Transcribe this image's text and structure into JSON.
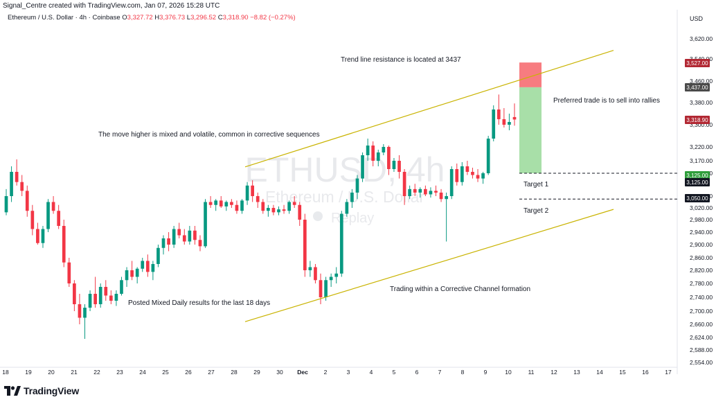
{
  "header": {
    "attribution": "Signal_Centre created with TradingView.com, Jan 07, 2026 15:28 UTC",
    "symbol": "Ethereum / U.S. Dollar · 4h · Coinbase",
    "o_label": "O",
    "o_value": "3,327.72",
    "h_label": "H",
    "h_value": "3,376.73",
    "l_label": "L",
    "l_value": "3,296.52",
    "c_label": "C",
    "c_value": "3,318.90 −8.82 (−0.27%)",
    "currency": "USD"
  },
  "watermark": {
    "ticker": "ETHUSD, 4h",
    "name": "Ethereum / U.S. Dollar",
    "replay": "Replay"
  },
  "branding": {
    "logo_text": "TradingView"
  },
  "colors": {
    "up": "#089981",
    "down": "#f23645",
    "channel": "#c9b300",
    "stop_zone": "#f77c80",
    "target_zone": "#9fdc9f"
  },
  "chart_data": {
    "type": "candlestick",
    "symbol": "ETHUSD",
    "timeframe": "4h",
    "y_axis": {
      "ticks": [
        "3,620.00",
        "3,540.00",
        "3,460.00",
        "3,380.00",
        "3,300.00",
        "3,220.00",
        "3,170.00",
        "3,125.00",
        "3,060.00",
        "3,020.00",
        "2,980.00",
        "2,940.00",
        "2,900.00",
        "2,860.00",
        "2,820.00",
        "2,780.00",
        "2,740.00",
        "2,700.00",
        "2,660.00",
        "2,624.00",
        "2,588.00",
        "2,554.00"
      ]
    },
    "x_axis": {
      "ticks": [
        "18",
        "19",
        "20",
        "21",
        "22",
        "23",
        "24",
        "25",
        "26",
        "27",
        "28",
        "29",
        "30",
        "Dec",
        "2",
        "3",
        "4",
        "5",
        "6",
        "7",
        "8",
        "9",
        "10",
        "11",
        "12",
        "13",
        "14",
        "15",
        "16",
        "17"
      ]
    },
    "price_labels": [
      {
        "text": "3,527.00",
        "role": "stop",
        "color": "#b22833"
      },
      {
        "text": "3,437.00",
        "role": "resistance",
        "color": "#4a4a4a"
      },
      {
        "text": "3,318.90",
        "role": "last",
        "color": "#b22833"
      },
      {
        "text": "3,125.00",
        "role": "target1_top",
        "color": "#2e9e3a"
      },
      {
        "text": "3,125.00",
        "role": "target1",
        "color": "#131722"
      },
      {
        "text": "3,050.00",
        "role": "target2",
        "color": "#131722"
      }
    ],
    "annotations": [
      "Trend line resistance is located at 3437",
      "Preferred trade is to sell into rallies",
      "The move higher is mixed and volatile, common in corrective sequences",
      "Target 1",
      "Target 2",
      "Posted Mixed Daily results for the last 18 days",
      "Trading within a Corrective Channel formation"
    ],
    "last_close": 3318.9,
    "channel": {
      "upper": [
        [
          28.4,
          3148
        ],
        [
          15,
          3574
        ]
      ],
      "lower": [
        [
          28.4,
          2668
        ],
        [
          15,
          3015
        ]
      ]
    },
    "trade": {
      "entry": 3437,
      "stop": 3527,
      "target": 3125
    },
    "levels": [
      3125,
      3050
    ],
    "candles": [
      [
        3005,
        3080,
        2995,
        3060
      ],
      [
        3060,
        3150,
        3040,
        3130
      ],
      [
        3130,
        3175,
        3090,
        3100
      ],
      [
        3100,
        3120,
        3060,
        3075
      ],
      [
        3075,
        3090,
        2990,
        3010
      ],
      [
        3010,
        3030,
        2930,
        2950
      ],
      [
        2950,
        2970,
        2900,
        2905
      ],
      [
        2905,
        2960,
        2890,
        2950
      ],
      [
        2950,
        3050,
        2940,
        3040
      ],
      [
        3040,
        3060,
        3000,
        3010
      ],
      [
        3010,
        3030,
        2950,
        2960
      ],
      [
        2960,
        2980,
        2830,
        2845
      ],
      [
        2845,
        2860,
        2770,
        2780
      ],
      [
        2780,
        2790,
        2700,
        2720
      ],
      [
        2720,
        2750,
        2660,
        2680
      ],
      [
        2680,
        2720,
        2620,
        2710
      ],
      [
        2710,
        2760,
        2700,
        2750
      ],
      [
        2750,
        2800,
        2710,
        2720
      ],
      [
        2720,
        2780,
        2710,
        2770
      ],
      [
        2770,
        2790,
        2730,
        2745
      ],
      [
        2745,
        2760,
        2720,
        2730
      ],
      [
        2730,
        2760,
        2715,
        2750
      ],
      [
        2750,
        2800,
        2745,
        2790
      ],
      [
        2790,
        2830,
        2770,
        2820
      ],
      [
        2820,
        2850,
        2790,
        2800
      ],
      [
        2800,
        2830,
        2780,
        2825
      ],
      [
        2825,
        2860,
        2815,
        2850
      ],
      [
        2850,
        2870,
        2800,
        2815
      ],
      [
        2815,
        2850,
        2790,
        2840
      ],
      [
        2840,
        2900,
        2830,
        2890
      ],
      [
        2890,
        2930,
        2870,
        2920
      ],
      [
        2920,
        2940,
        2880,
        2900
      ],
      [
        2900,
        2960,
        2890,
        2950
      ],
      [
        2950,
        2970,
        2920,
        2930
      ],
      [
        2930,
        2950,
        2900,
        2910
      ],
      [
        2910,
        2960,
        2900,
        2945
      ],
      [
        2945,
        2960,
        2900,
        2915
      ],
      [
        2915,
        2930,
        2880,
        2895
      ],
      [
        2895,
        3050,
        2890,
        3040
      ],
      [
        3040,
        3060,
        3020,
        3030
      ],
      [
        3030,
        3050,
        3010,
        3045
      ],
      [
        3045,
        3060,
        3020,
        3025
      ],
      [
        3025,
        3045,
        3010,
        3040
      ],
      [
        3040,
        3050,
        3020,
        3030
      ],
      [
        3030,
        3045,
        3000,
        3010
      ],
      [
        3010,
        3050,
        3000,
        3045
      ],
      [
        3045,
        3100,
        3030,
        3090
      ],
      [
        3090,
        3105,
        3040,
        3060
      ],
      [
        3060,
        3070,
        3020,
        3040
      ],
      [
        3040,
        3050,
        3000,
        3010
      ],
      [
        3010,
        3030,
        2990,
        3020
      ],
      [
        3020,
        3030,
        2995,
        3005
      ],
      [
        3005,
        3025,
        2995,
        3015
      ],
      [
        3015,
        3030,
        3000,
        3010
      ],
      [
        3010,
        3045,
        3000,
        3040
      ],
      [
        3040,
        3060,
        3020,
        3030
      ],
      [
        3030,
        3040,
        2960,
        2980
      ],
      [
        2980,
        3000,
        2800,
        2820
      ],
      [
        2820,
        2850,
        2800,
        2830
      ],
      [
        2830,
        2840,
        2780,
        2790
      ],
      [
        2790,
        2810,
        2720,
        2740
      ],
      [
        2740,
        2800,
        2730,
        2790
      ],
      [
        2790,
        2810,
        2770,
        2800
      ],
      [
        2800,
        2830,
        2780,
        2810
      ],
      [
        2810,
        3010,
        2800,
        3000
      ],
      [
        3000,
        3050,
        2990,
        3040
      ],
      [
        3040,
        3080,
        3020,
        3070
      ],
      [
        3070,
        3120,
        3050,
        3110
      ],
      [
        3110,
        3200,
        3100,
        3190
      ],
      [
        3190,
        3250,
        3170,
        3225
      ],
      [
        3225,
        3240,
        3150,
        3170
      ],
      [
        3170,
        3210,
        3150,
        3200
      ],
      [
        3200,
        3230,
        3190,
        3220
      ],
      [
        3220,
        3225,
        3120,
        3140
      ],
      [
        3140,
        3180,
        3130,
        3170
      ],
      [
        3170,
        3190,
        3110,
        3130
      ],
      [
        3130,
        3140,
        3030,
        3060
      ],
      [
        3060,
        3090,
        3050,
        3080
      ],
      [
        3080,
        3095,
        3060,
        3070
      ],
      [
        3070,
        3085,
        3055,
        3080
      ],
      [
        3080,
        3090,
        3060,
        3065
      ],
      [
        3065,
        3085,
        3055,
        3075
      ],
      [
        3075,
        3090,
        3060,
        3070
      ],
      [
        3070,
        3080,
        3040,
        3050
      ],
      [
        3050,
        3070,
        2910,
        3060
      ],
      [
        3060,
        3150,
        3050,
        3140
      ],
      [
        3140,
        3160,
        3090,
        3100
      ],
      [
        3100,
        3165,
        3090,
        3150
      ],
      [
        3150,
        3170,
        3120,
        3130
      ],
      [
        3130,
        3145,
        3110,
        3120
      ],
      [
        3120,
        3140,
        3100,
        3110
      ],
      [
        3110,
        3130,
        3095,
        3125
      ],
      [
        3125,
        3260,
        3120,
        3250
      ],
      [
        3250,
        3370,
        3240,
        3355
      ],
      [
        3355,
        3410,
        3300,
        3320
      ],
      [
        3320,
        3360,
        3290,
        3300
      ],
      [
        3300,
        3340,
        3280,
        3310
      ],
      [
        3327.72,
        3376.73,
        3296.52,
        3318.9
      ]
    ]
  }
}
